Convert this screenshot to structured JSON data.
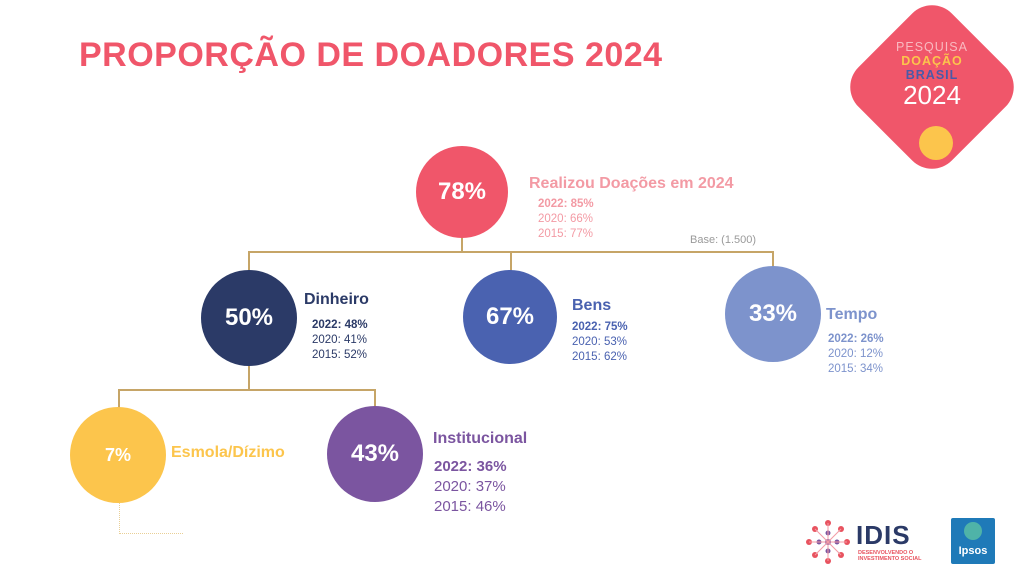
{
  "title": "PROPORÇÃO DE DOADORES 2024",
  "base": "Base: (1.500)",
  "logo": {
    "line1": "PESQUISA",
    "line2": "DOAÇÃO",
    "line3": "BRASIL",
    "year": "2024",
    "colors": {
      "bg": "#f0566a",
      "line1": "#f9b9c0",
      "line2": "#fcc54c",
      "line3": "#4a5aa8",
      "sun": "#fcc54c"
    }
  },
  "nodes": {
    "root": {
      "pct": "78%",
      "label": "Realizou Doações em 2024",
      "h2022": "2022: 85%",
      "h2020": "2020: 66%",
      "h2015": "2015: 77%",
      "color": "#f0566a",
      "text_color": "#f39aa4"
    },
    "money": {
      "pct": "50%",
      "label": "Dinheiro",
      "h2022": "2022: 48%",
      "h2020": "2020: 41%",
      "h2015": "2015: 52%",
      "color": "#2b3a67",
      "text_color": "#2b3a67"
    },
    "goods": {
      "pct": "67%",
      "label": "Bens",
      "h2022": "2022: 75%",
      "h2020": "2020: 53%",
      "h2015": "2015: 62%",
      "color": "#4a62b0",
      "text_color": "#4a62b0"
    },
    "time": {
      "pct": "33%",
      "label": "Tempo",
      "h2022": "2022: 26%",
      "h2020": "2020: 12%",
      "h2015": "2015: 34%",
      "color": "#7d93cc",
      "text_color": "#7d93cc"
    },
    "alms": {
      "pct": "7%",
      "label": "Esmola/Dízimo",
      "color": "#fcc54c",
      "text_color": "#fcc54c"
    },
    "inst": {
      "pct": "43%",
      "label": "Institucional",
      "h2022": "2022: 36%",
      "h2020": "2020: 37%",
      "h2015": "2015: 46%",
      "color": "#7b55a0",
      "text_color": "#7b55a0"
    }
  },
  "footer": {
    "idis_name": "IDIS",
    "idis_sub1": "DESENVOLVENDO O",
    "idis_sub2": "INVESTIMENTO SOCIAL",
    "ipsos": "Ipsos",
    "colors": {
      "idis_blue": "#2b3a67",
      "idis_accent": "#e8535f",
      "ipsos_bg": "#1f7ab8"
    }
  }
}
